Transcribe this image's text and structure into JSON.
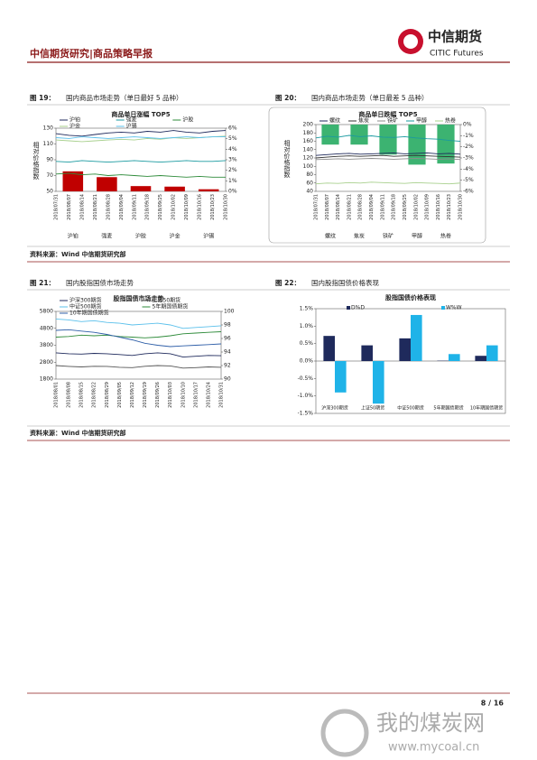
{
  "header": {
    "title": "中信期货研究|商品策略早报",
    "logo_name": "中信期货",
    "logo_en": "CITIC Futures"
  },
  "figures": [
    {
      "label": "图 19：",
      "caption": "国内商品市场走势（单日最好 5 品种）"
    },
    {
      "label": "图 20：",
      "caption": "国内商品市场走势（单日最差 5 品种）"
    },
    {
      "label": "图 21：",
      "caption": "国内股指国债市场走势"
    },
    {
      "label": "图 22：",
      "caption": "国内股指国债价格表现"
    }
  ],
  "sources": [
    "资料来源：Wind 中信期货研究部",
    "资料来源：Wind 中信期货研究部"
  ],
  "footer": {
    "page": "8 / 16"
  },
  "watermark": {
    "cn": "我的煤炭网",
    "url": "www.mycoal.cn"
  },
  "chart_data": [
    {
      "type": "line",
      "title": "商品单日涨幅 TOP5",
      "ylabel": "相对价格指数",
      "x": [
        "2018/07/31",
        "2018/08/07",
        "2018/08/14",
        "2018/08/21",
        "2018/08/28",
        "2018/09/04",
        "2018/09/11",
        "2018/09/18",
        "2018/09/25",
        "2018/10/02",
        "2018/10/09",
        "2018/10/16",
        "2018/10/23",
        "2018/10/30"
      ],
      "series": [
        {
          "name": "沪铂",
          "color": "#1f2a5c",
          "values": [
            123,
            121,
            120,
            122,
            124,
            125,
            124,
            126,
            125,
            127,
            125,
            124,
            126,
            127
          ]
        },
        {
          "name": "强麦",
          "color": "#1a9aa0",
          "values": [
            88,
            87,
            89,
            88,
            87,
            88,
            89,
            88,
            87,
            88,
            89,
            88,
            88,
            89
          ]
        },
        {
          "name": "沪胶",
          "color": "#2e8b3a",
          "values": [
            72,
            73,
            71,
            72,
            70,
            71,
            70,
            69,
            70,
            69,
            68,
            69,
            68,
            68
          ]
        },
        {
          "name": "沪金",
          "color": "#a8d08d",
          "values": [
            115,
            114,
            113,
            114,
            115,
            116,
            115,
            117,
            116,
            118,
            117,
            118,
            119,
            120
          ]
        },
        {
          "name": "沪锡",
          "color": "#5bc0eb",
          "values": [
            118,
            117,
            119,
            118,
            117,
            118,
            119,
            118,
            117,
            118,
            119,
            118,
            119,
            119
          ]
        }
      ],
      "bars": {
        "categories": [
          "沪铂",
          "强麦",
          "沪胶",
          "沪金",
          "沪锡"
        ],
        "values": [
          1.9,
          1.35,
          0.5,
          0.45,
          0.2
        ],
        "color": "#c00000",
        "axis": "y2"
      },
      "ylim": [
        50,
        130
      ],
      "yticks": [
        50,
        70,
        90,
        110,
        130
      ],
      "y2lim": [
        0,
        6
      ],
      "y2ticks": [
        {
          "value": 0,
          "label": "0%"
        },
        {
          "value": 1,
          "label": "1%"
        },
        {
          "value": 2,
          "label": "2%"
        },
        {
          "value": 3,
          "label": "3%"
        },
        {
          "value": 4,
          "label": "4%"
        },
        {
          "value": 5,
          "label": "5%"
        },
        {
          "value": 6,
          "label": "6%"
        }
      ]
    },
    {
      "type": "line",
      "title": "商品单日跌幅 TOP5",
      "ylabel": "相对价格指数",
      "x": [
        "2018/07/31",
        "2018/08/07",
        "2018/08/14",
        "2018/08/21",
        "2018/08/28",
        "2018/09/04",
        "2018/09/11",
        "2018/09/18",
        "2018/09/25",
        "2018/10/02",
        "2018/10/09",
        "2018/10/16",
        "2018/10/23",
        "2018/10/30"
      ],
      "series": [
        {
          "name": "螺纹",
          "color": "#1f2a5c",
          "values": [
            126,
            128,
            130,
            131,
            129,
            130,
            131,
            132,
            130,
            131,
            132,
            130,
            131,
            129
          ]
        },
        {
          "name": "焦炭",
          "color": "#333333",
          "values": [
            120,
            122,
            124,
            125,
            124,
            125,
            126,
            124,
            125,
            126,
            125,
            124,
            123,
            122
          ]
        },
        {
          "name": "铁矿",
          "color": "#8c8c8c",
          "values": [
            116,
            117,
            118,
            117,
            118,
            119,
            118,
            117,
            118,
            119,
            118,
            117,
            118,
            116
          ]
        },
        {
          "name": "甲醇",
          "color": "#1a9aa0",
          "values": [
            168,
            172,
            170,
            174,
            171,
            173,
            170,
            169,
            171,
            168,
            166,
            165,
            162,
            160
          ]
        },
        {
          "name": "热卷",
          "color": "#a8d08d",
          "values": [
            58,
            60,
            59,
            61,
            60,
            62,
            61,
            60,
            59,
            61,
            60,
            59,
            58,
            60
          ]
        }
      ],
      "bars": {
        "categories": [
          "螺纹",
          "焦炭",
          "铁矿",
          "甲醇",
          "热卷"
        ],
        "values": [
          -1.8,
          -1.8,
          -2.7,
          -3.6,
          -3.5
        ],
        "color": "#3cb371",
        "axis": "y2"
      },
      "ylim": [
        40,
        200
      ],
      "yticks": [
        40,
        60,
        80,
        100,
        120,
        140,
        160,
        180,
        200
      ],
      "y2lim": [
        -6,
        0
      ],
      "y2ticks": [
        {
          "value": 0,
          "label": "0%"
        },
        {
          "value": -1,
          "label": "-1%"
        },
        {
          "value": -2,
          "label": "-2%"
        },
        {
          "value": -3,
          "label": "-3%"
        },
        {
          "value": -4,
          "label": "-4%"
        },
        {
          "value": -5,
          "label": "-5%"
        },
        {
          "value": -6,
          "label": "-6%"
        }
      ]
    },
    {
      "type": "line",
      "title": "股指国债市场走势",
      "x": [
        "2018/08/01",
        "2018/08/08",
        "2018/08/15",
        "2018/08/22",
        "2018/08/29",
        "2018/09/05",
        "2018/09/12",
        "2018/09/19",
        "2018/09/26",
        "2018/10/03",
        "2018/10/10",
        "2018/10/17",
        "2018/10/24",
        "2018/10/31"
      ],
      "series": [
        {
          "name": "沪深300期货",
          "color": "#1f2a5c",
          "values": [
            3350,
            3300,
            3280,
            3320,
            3300,
            3250,
            3200,
            3300,
            3350,
            3300,
            3100,
            3150,
            3200,
            3180
          ]
        },
        {
          "name": "上证50期货",
          "color": "#555555",
          "values": [
            2600,
            2550,
            2520,
            2560,
            2550,
            2500,
            2480,
            2560,
            2600,
            2580,
            2450,
            2480,
            2520,
            2500
          ]
        },
        {
          "name": "中证500期货",
          "color": "#5bc0eb",
          "values": [
            5350,
            5300,
            5200,
            5250,
            5150,
            5100,
            5000,
            5050,
            5100,
            5000,
            4800,
            4850,
            4900,
            4950
          ]
        },
        {
          "name": "5年期国债期货",
          "color": "#2e8b3a",
          "axis": "y2",
          "values": [
            96.2,
            96.3,
            96.5,
            96.4,
            96.5,
            96.3,
            96.2,
            96.1,
            96.2,
            96.4,
            96.7,
            96.8,
            96.9,
            97.0
          ]
        },
        {
          "name": "10年期国债期货",
          "color": "#2f5fa8",
          "axis": "y2",
          "values": [
            97.2,
            97.3,
            97.1,
            96.9,
            96.6,
            96.2,
            95.8,
            95.3,
            95.0,
            94.8,
            94.9,
            95.0,
            95.1,
            95.2
          ]
        }
      ],
      "ylim": [
        1800,
        5800
      ],
      "yticks": [
        1800,
        2800,
        3800,
        4800,
        5800
      ],
      "y2lim": [
        90,
        100
      ],
      "y2ticks": [
        90,
        92,
        94,
        96,
        98,
        100
      ]
    },
    {
      "type": "bar",
      "title": "股指国债价格表现",
      "categories": [
        "沪深300期货",
        "上证50期货",
        "中证500期货",
        "5年期国债期货",
        "10年期国债期货"
      ],
      "series": [
        {
          "name": "D%D",
          "color": "#1f2a5c",
          "values": [
            0.72,
            0.45,
            0.65,
            0.01,
            0.15
          ]
        },
        {
          "name": "W%W",
          "color": "#1fb3e8",
          "values": [
            -0.9,
            -1.22,
            1.32,
            0.2,
            0.45
          ]
        }
      ],
      "ylim": [
        -1.5,
        1.5
      ],
      "yticks": [
        {
          "value": 1.5,
          "label": "1.5%"
        },
        {
          "value": 1,
          "label": "1.0%"
        },
        {
          "value": 0.5,
          "label": "0.5%"
        },
        {
          "value": 0,
          "label": "0.0%"
        },
        {
          "value": -0.5,
          "label": "-0.5%"
        },
        {
          "value": -1,
          "label": "-1.0%"
        },
        {
          "value": -1.5,
          "label": "-1.5%"
        }
      ]
    }
  ]
}
